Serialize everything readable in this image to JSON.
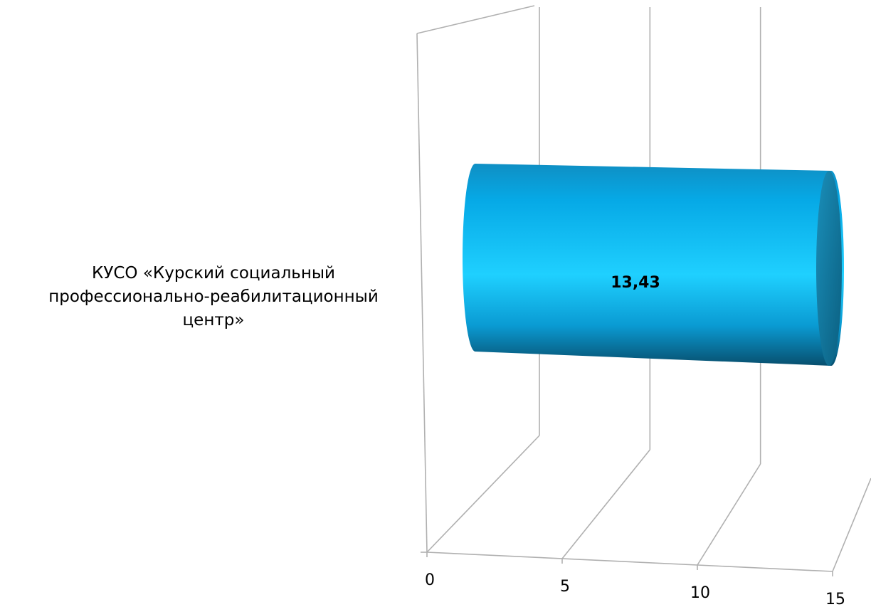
{
  "chart_data": {
    "type": "bar",
    "orientation": "horizontal",
    "style": "3d-cylinder",
    "categories": [
      "КУСО «Курский социальный профессионально-реабилитационный центр»"
    ],
    "category_label_lines": [
      "КУСО «Курский социальный",
      "профессионально-реабилитационный",
      "центр»"
    ],
    "values": [
      13.43
    ],
    "data_labels": [
      "13,43"
    ],
    "x_ticks": [
      "0",
      "5",
      "10",
      "15"
    ],
    "xlim": [
      0,
      15
    ],
    "grid": true,
    "legend": "none",
    "bar_color": "#16b4ea"
  }
}
